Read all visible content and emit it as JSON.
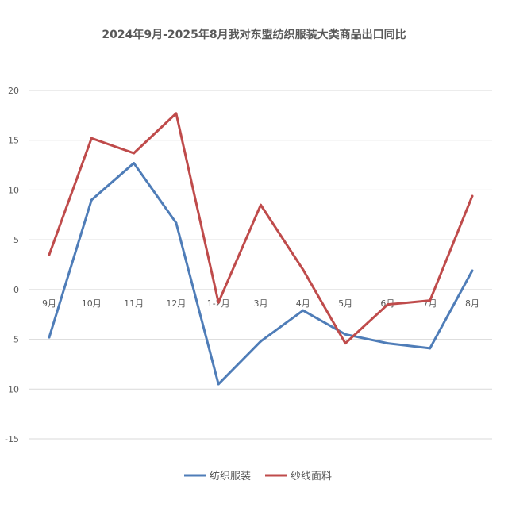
{
  "chart_data": {
    "type": "line",
    "title": "2024年9月-2025年8月我对东盟纺织服装大类商品出口同比",
    "xlabel": "",
    "ylabel": "",
    "ylim": [
      -15,
      20
    ],
    "yticks": [
      20,
      15,
      10,
      5,
      0,
      -5,
      -10,
      -15
    ],
    "grid": true,
    "legend": "bottom",
    "categories": [
      "9月",
      "10月",
      "11月",
      "12月",
      "1-2月",
      "3月",
      "4月",
      "5月",
      "6月",
      "7月",
      "8月"
    ],
    "series": [
      {
        "name": "纺织服装",
        "color": "#4f7db8",
        "values": [
          -4.8,
          9.0,
          12.7,
          6.7,
          -9.5,
          -5.2,
          -2.1,
          -4.5,
          -5.4,
          -5.9,
          1.9
        ]
      },
      {
        "name": "纱线面料",
        "color": "#bf4b4b",
        "values": [
          3.5,
          15.2,
          13.7,
          17.7,
          -1.3,
          8.5,
          2.0,
          -5.4,
          -1.5,
          -1.1,
          9.4
        ]
      }
    ]
  }
}
